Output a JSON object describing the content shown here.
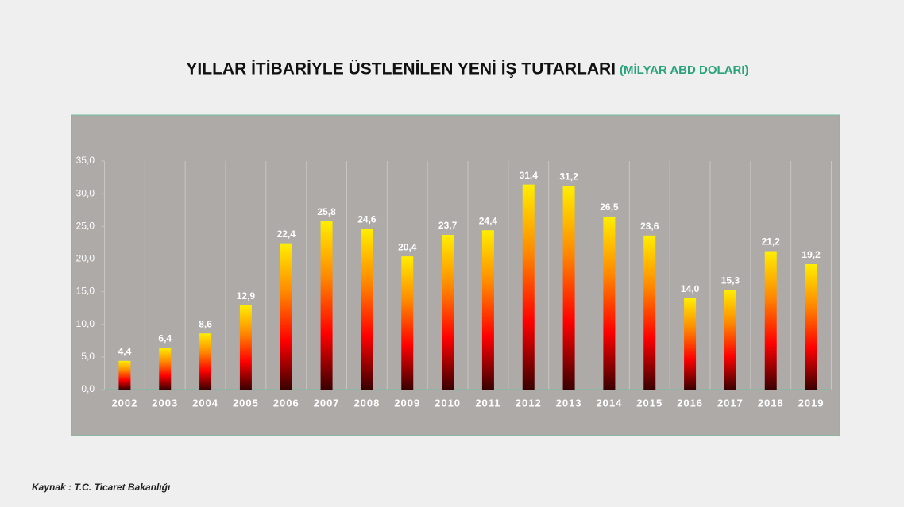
{
  "chart_data": {
    "type": "bar",
    "title": "YILLAR İTİBARİYLE ÜSTLENİLEN YENİ İŞ TUTARLARI",
    "subtitle": "(MİLYAR ABD DOLARI)",
    "source": "Kaynak : T.C. Ticaret  Bakanlığı",
    "categories": [
      "2002",
      "2003",
      "2004",
      "2005",
      "2006",
      "2007",
      "2008",
      "2009",
      "2010",
      "2011",
      "2012",
      "2013",
      "2014",
      "2015",
      "2016",
      "2017",
      "2018",
      "2019"
    ],
    "values": [
      4.4,
      6.4,
      8.6,
      12.9,
      22.4,
      25.8,
      24.6,
      20.4,
      23.7,
      24.4,
      31.4,
      31.2,
      26.5,
      23.6,
      14.0,
      15.3,
      21.2,
      19.2
    ],
    "value_labels": [
      "4,4",
      "6,4",
      "8,6",
      "12,9",
      "22,4",
      "25,8",
      "24,6",
      "20,4",
      "23,7",
      "24,4",
      "31,4",
      "31,2",
      "26,5",
      "23,6",
      "14,0",
      "15,3",
      "21,2",
      "19,2"
    ],
    "gradient": [
      "#ffee00",
      "#ff8800",
      "#ff0000",
      "#3a0000"
    ],
    "ylim": [
      0,
      35
    ],
    "yticks": [
      {
        "value": 0,
        "label": "0,0"
      },
      {
        "value": 5,
        "label": "5,0"
      },
      {
        "value": 10,
        "label": "10,0"
      },
      {
        "value": 15,
        "label": "15,0"
      },
      {
        "value": 20,
        "label": "20,0"
      },
      {
        "value": 25,
        "label": "25,0"
      },
      {
        "value": 30,
        "label": "30,0"
      },
      {
        "value": 35,
        "label": "35,0"
      }
    ],
    "grid": true
  }
}
